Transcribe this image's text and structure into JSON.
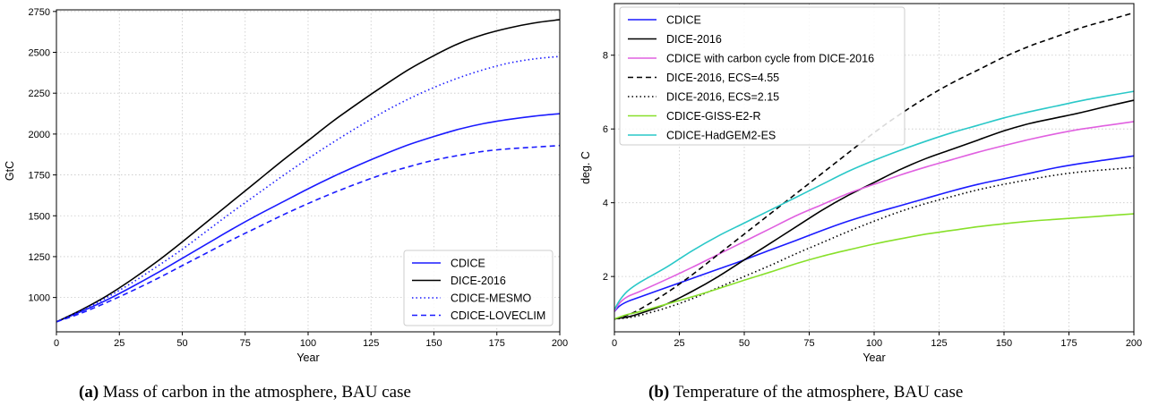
{
  "captions": {
    "a": {
      "tag": "(a)",
      "text": " Mass of carbon in the atmosphere, BAU case"
    },
    "b": {
      "tag": "(b)",
      "text": " Temperature of the atmosphere, BAU case"
    }
  },
  "chart_data": [
    {
      "type": "line",
      "xlabel": "Year",
      "ylabel": "GtC",
      "xlim": [
        0,
        200
      ],
      "ylim": [
        790,
        2760
      ],
      "xticks": [
        0,
        25,
        50,
        75,
        100,
        125,
        150,
        175,
        200
      ],
      "yticks": [
        1000,
        1250,
        1500,
        1750,
        2000,
        2250,
        2500,
        2750
      ],
      "grid": true,
      "legend_position": "lower-right",
      "x": [
        0,
        10,
        20,
        30,
        40,
        50,
        60,
        70,
        80,
        90,
        100,
        110,
        120,
        130,
        140,
        150,
        160,
        170,
        180,
        190,
        200
      ],
      "series": [
        {
          "name": "CDICE",
          "color": "#1a1aff",
          "dash": "solid",
          "values": [
            851,
            915,
            985,
            1065,
            1150,
            1240,
            1330,
            1420,
            1505,
            1585,
            1665,
            1740,
            1810,
            1875,
            1935,
            1985,
            2030,
            2065,
            2090,
            2110,
            2125
          ]
        },
        {
          "name": "DICE-2016",
          "color": "#000000",
          "dash": "solid",
          "values": [
            851,
            925,
            1010,
            1110,
            1220,
            1340,
            1465,
            1590,
            1715,
            1840,
            1960,
            2080,
            2190,
            2295,
            2395,
            2480,
            2555,
            2610,
            2650,
            2680,
            2700
          ]
        },
        {
          "name": "CDICE-MESMO",
          "color": "#1a1aff",
          "dash": "dotted",
          "values": [
            851,
            920,
            1000,
            1090,
            1190,
            1295,
            1410,
            1525,
            1635,
            1745,
            1850,
            1950,
            2045,
            2135,
            2215,
            2285,
            2345,
            2395,
            2435,
            2460,
            2475
          ]
        },
        {
          "name": "CDICE-LOVECLIM",
          "color": "#1a1aff",
          "dash": "dashed",
          "values": [
            851,
            905,
            970,
            1040,
            1115,
            1195,
            1275,
            1355,
            1430,
            1505,
            1575,
            1640,
            1700,
            1755,
            1800,
            1840,
            1870,
            1895,
            1910,
            1920,
            1930
          ]
        }
      ]
    },
    {
      "type": "line",
      "xlabel": "Year",
      "ylabel": "deg. C",
      "xlim": [
        0,
        200
      ],
      "ylim": [
        0.5,
        9.4
      ],
      "xticks": [
        0,
        25,
        50,
        75,
        100,
        125,
        150,
        175,
        200
      ],
      "yticks": [
        2,
        4,
        6,
        8
      ],
      "grid": true,
      "legend_position": "upper-left",
      "x": [
        0,
        2,
        5,
        10,
        20,
        30,
        40,
        50,
        60,
        70,
        80,
        90,
        100,
        110,
        120,
        130,
        140,
        150,
        160,
        170,
        180,
        190,
        200
      ],
      "series": [
        {
          "name": "CDICE",
          "color": "#1a1aff",
          "dash": "solid",
          "values": [
            1.05,
            1.2,
            1.32,
            1.45,
            1.7,
            1.95,
            2.2,
            2.45,
            2.72,
            2.98,
            3.25,
            3.5,
            3.72,
            3.92,
            4.12,
            4.32,
            4.5,
            4.65,
            4.8,
            4.95,
            5.07,
            5.17,
            5.27
          ]
        },
        {
          "name": "DICE-2016",
          "color": "#000000",
          "dash": "solid",
          "values": [
            0.85,
            0.87,
            0.9,
            1.0,
            1.25,
            1.6,
            2.0,
            2.45,
            2.9,
            3.35,
            3.8,
            4.2,
            4.55,
            4.9,
            5.2,
            5.45,
            5.7,
            5.95,
            6.15,
            6.3,
            6.45,
            6.62,
            6.78
          ]
        },
        {
          "name": "CDICE with carbon cycle from DICE-2016",
          "color": "#e060e0",
          "dash": "solid",
          "values": [
            1.05,
            1.28,
            1.45,
            1.6,
            1.92,
            2.25,
            2.6,
            2.95,
            3.3,
            3.65,
            3.95,
            4.25,
            4.5,
            4.75,
            4.97,
            5.17,
            5.37,
            5.55,
            5.72,
            5.87,
            6.0,
            6.1,
            6.2
          ]
        },
        {
          "name": "DICE-2016, ECS=4.55",
          "color": "#000000",
          "dash": "dashed",
          "values": [
            0.85,
            0.88,
            0.95,
            1.12,
            1.55,
            2.05,
            2.6,
            3.15,
            3.7,
            4.25,
            4.8,
            5.35,
            5.9,
            6.4,
            6.85,
            7.25,
            7.6,
            7.95,
            8.25,
            8.5,
            8.75,
            8.95,
            9.15
          ]
        },
        {
          "name": "DICE-2016, ECS=2.15",
          "color": "#000000",
          "dash": "dotted",
          "values": [
            0.85,
            0.86,
            0.88,
            0.95,
            1.15,
            1.4,
            1.7,
            2.0,
            2.3,
            2.62,
            2.92,
            3.22,
            3.5,
            3.76,
            3.98,
            4.17,
            4.35,
            4.5,
            4.63,
            4.75,
            4.84,
            4.9,
            4.95
          ]
        },
        {
          "name": "CDICE-GISS-E2-R",
          "color": "#88e02a",
          "dash": "solid",
          "values": [
            0.85,
            0.9,
            0.97,
            1.05,
            1.25,
            1.45,
            1.67,
            1.9,
            2.12,
            2.35,
            2.55,
            2.72,
            2.88,
            3.02,
            3.15,
            3.25,
            3.35,
            3.43,
            3.5,
            3.55,
            3.6,
            3.65,
            3.7
          ]
        },
        {
          "name": "CDICE-HadGEM2-ES",
          "color": "#2ac8c8",
          "dash": "solid",
          "values": [
            1.1,
            1.35,
            1.6,
            1.85,
            2.25,
            2.7,
            3.1,
            3.45,
            3.8,
            4.15,
            4.5,
            4.85,
            5.15,
            5.42,
            5.67,
            5.9,
            6.1,
            6.3,
            6.47,
            6.62,
            6.77,
            6.9,
            7.02
          ]
        }
      ]
    }
  ]
}
